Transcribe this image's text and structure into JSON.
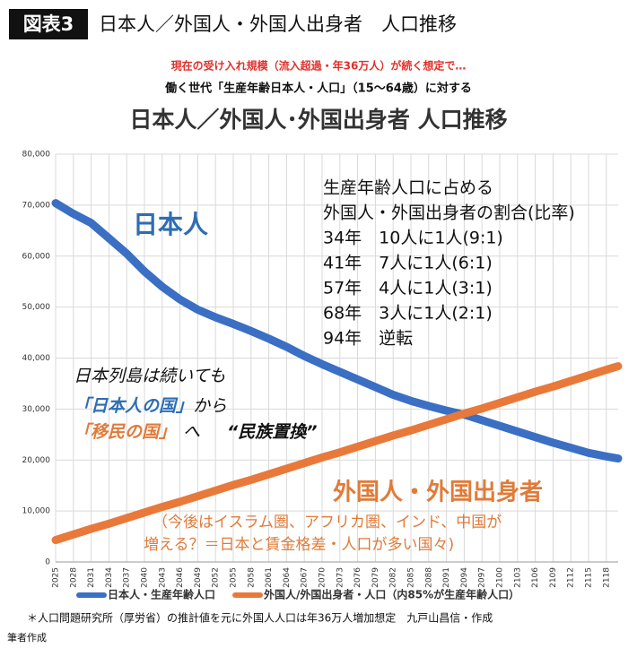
{
  "header": {
    "figure_label": "図表3",
    "title": "日本人／外国人・外国人出身者　人口推移"
  },
  "subtitle_red": "現在の受け入れ規模（流入超過・年36万人）が続く想定で…",
  "subtitle_black": "働く世代「生産年齢日本人・人口」（15〜64歳）に対する",
  "chart_data": {
    "type": "line",
    "title": "日本人／外国人･外国出身者  人口推移",
    "x": [
      2025,
      2028,
      2031,
      2034,
      2037,
      2040,
      2043,
      2046,
      2049,
      2052,
      2055,
      2058,
      2061,
      2064,
      2067,
      2070,
      2073,
      2076,
      2079,
      2082,
      2085,
      2088,
      2091,
      2094,
      2097,
      2100,
      2103,
      2106,
      2109,
      2112,
      2115,
      2118,
      2120
    ],
    "xlim": [
      2025,
      2120
    ],
    "xticks": [
      2025,
      2028,
      2031,
      2034,
      2037,
      2040,
      2043,
      2046,
      2049,
      2052,
      2055,
      2058,
      2061,
      2064,
      2067,
      2070,
      2073,
      2076,
      2079,
      2082,
      2085,
      2088,
      2091,
      2094,
      2097,
      2100,
      2103,
      2106,
      2109,
      2112,
      2115,
      2118
    ],
    "ylim": [
      0,
      80000
    ],
    "yticks": [
      0,
      {
        "value": 10000,
        "label": "10,000"
      },
      {
        "value": 20000,
        "label": "20,000"
      },
      {
        "value": 30000,
        "label": "30,000"
      },
      {
        "value": 40000,
        "label": "40,000"
      },
      {
        "value": 50000,
        "label": "50,000"
      },
      {
        "value": 60000,
        "label": "60,000"
      },
      {
        "value": 70000,
        "label": "70,000"
      },
      {
        "value": 80000,
        "label": "80,000"
      }
    ],
    "grid": true,
    "legend": "bottom",
    "series": [
      {
        "name": "日本人・生産年齢人口",
        "color": "#3a6fc4",
        "values": [
          70400,
          68300,
          66500,
          63500,
          60500,
          57000,
          54000,
          51500,
          49500,
          48000,
          46700,
          45300,
          43800,
          42200,
          40400,
          38800,
          37300,
          35800,
          34300,
          32800,
          31600,
          30600,
          29700,
          28900,
          27800,
          26700,
          25600,
          24500,
          23400,
          22400,
          21400,
          20700,
          20300
        ]
      },
      {
        "name": "外国人/外国出身者・人口（内85%が生産年齢人口）",
        "color": "#e8793a",
        "values": [
          4300,
          5400,
          6500,
          7500,
          8600,
          9700,
          10800,
          11800,
          12900,
          14000,
          15100,
          16100,
          17200,
          18300,
          19400,
          20500,
          21500,
          22600,
          23700,
          24800,
          25800,
          26900,
          28000,
          29100,
          30100,
          31200,
          32300,
          33400,
          34400,
          35500,
          36600,
          37700,
          38400
        ]
      }
    ],
    "label_japanese": "日本人",
    "ratio_note": [
      "生産年齢人口に占める",
      "外国人・外国出身者の割合(比率)",
      "34年　10人に1人(9:1)",
      "41年　7人に1人(6:1)",
      "57年　4人に1人(3:1)",
      "68年　3人に1人(2:1)",
      "94年　逆転"
    ],
    "message_1": "日本列島は続いても",
    "message_2a": "「日本人の国」",
    "message_2b": "から",
    "message_3a": "「移民の国」",
    "message_3b": "へ",
    "message_3c": "“民族置換”",
    "label_foreign": "外国人・外国出身者",
    "foreign_note": [
      "（今後はイスラム圏、アフリカ圏、インド、中国が",
      "増える？＝日本と賃金格差・人口が多い国々)"
    ]
  },
  "footnote": "＊人口問題研究所（厚労省）の推計値を元に外国人人口は年36万人増加想定　九戸山昌信・作成",
  "credit": "筆者作成"
}
